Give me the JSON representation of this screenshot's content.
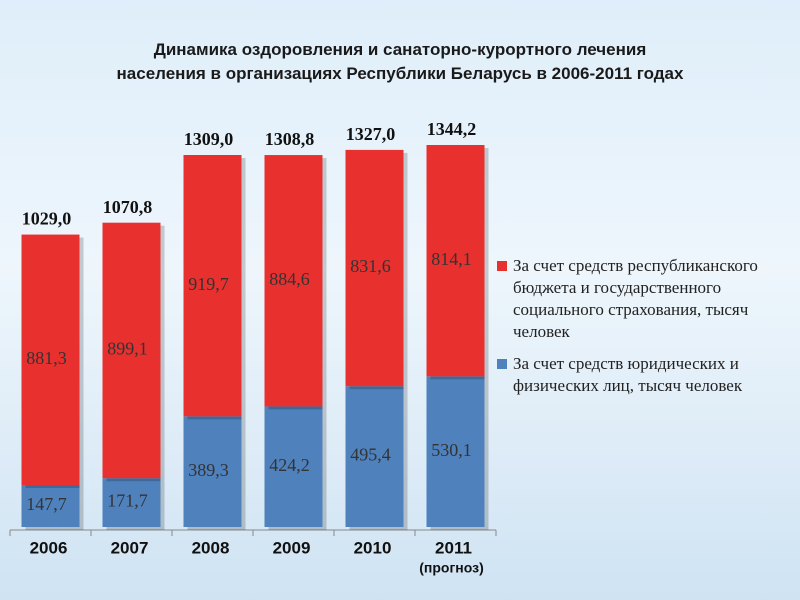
{
  "chart_data": {
    "type": "stacked_bar",
    "title": [
      "Динамика оздоровления и санаторно-курортного лечения",
      "населения в организациях Республики Беларусь в 2006-2011 годах"
    ],
    "categories": [
      "2006",
      "2007",
      "2008",
      "2009",
      "2010",
      "2011"
    ],
    "annotation": "(прогноз)",
    "series": [
      {
        "name": "За счет средств юридических и физических лиц, тысяч человек",
        "color": "#4f81bd",
        "values": [
          147.7,
          171.7,
          389.3,
          424.2,
          495.4,
          530.1
        ],
        "value_labels": [
          "147,7",
          "171,7",
          "389,3",
          "424,2",
          "495,4",
          "530,1"
        ]
      },
      {
        "name": "За счет средств республиканского бюджета и государственного социального страхования, тысяч человек",
        "color": "#e8302f",
        "values": [
          881.3,
          899.1,
          919.7,
          884.6,
          831.6,
          814.1
        ],
        "value_labels": [
          "881,3",
          "899,1",
          "919,7",
          "884,6",
          "831,6",
          "814,1"
        ]
      }
    ],
    "totals": [
      1029.0,
      1070.8,
      1309.0,
      1308.8,
      1327.0,
      1344.2
    ],
    "total_labels": [
      "1029,0",
      "1070,8",
      "1309,0",
      "1308,8",
      "1327,0",
      "1344,2"
    ],
    "legend_order": [
      1,
      0
    ]
  }
}
